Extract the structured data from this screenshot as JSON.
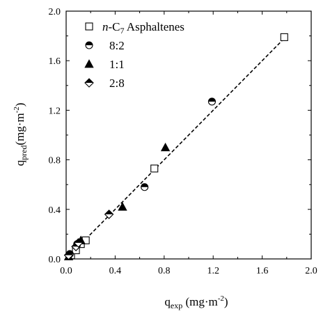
{
  "chart_data": {
    "type": "scatter",
    "xlabel_base": "q",
    "xlabel_sub": "exp",
    "xlabel_unit": " (mg·m",
    "xlabel_exp": "-2",
    "xlabel_close": ")",
    "ylabel_base": "q",
    "ylabel_sub": "pred",
    "ylabel_unit": "(mg·m",
    "ylabel_exp": "-2",
    "ylabel_close": ")",
    "xlim": [
      0,
      2.0
    ],
    "ylim": [
      0,
      2.0
    ],
    "xticks": [
      "0.0",
      "0.4",
      "0.8",
      "1.2",
      "1.6",
      "2.0"
    ],
    "yticks": [
      "0.0",
      "0.4",
      "0.8",
      "1.2",
      "1.6",
      "2.0"
    ],
    "grid": false,
    "legend_position": "top-left",
    "fit_line": {
      "style": "dashed",
      "x": [
        0,
        1.8
      ],
      "y": [
        0,
        1.8
      ]
    },
    "series": [
      {
        "name_italic": "n",
        "name_mid": "-C",
        "name_sub": "7",
        "name_rest": " Asphaltenes",
        "marker": "open-square",
        "x": [
          0.04,
          0.08,
          0.12,
          0.16,
          0.72,
          1.78
        ],
        "y": [
          0.03,
          0.07,
          0.12,
          0.15,
          0.73,
          1.79
        ]
      },
      {
        "name": "8:2",
        "marker": "half-circle",
        "x": [
          0.03,
          0.09,
          0.64,
          1.19
        ],
        "y": [
          0.04,
          0.12,
          0.58,
          1.27
        ]
      },
      {
        "name": "1:1",
        "marker": "filled-triangle",
        "x": [
          0.02,
          0.12,
          0.46,
          0.81
        ],
        "y": [
          0.02,
          0.15,
          0.42,
          0.9
        ]
      },
      {
        "name": "2:8",
        "marker": "half-diamond",
        "x": [
          0.02,
          0.08,
          0.1,
          0.35
        ],
        "y": [
          0.03,
          0.1,
          0.13,
          0.36
        ]
      }
    ]
  }
}
